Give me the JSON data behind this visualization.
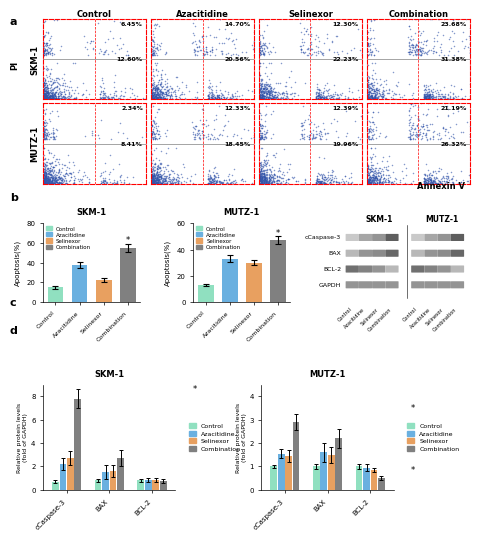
{
  "panel_a": {
    "title_cols": [
      "Control",
      "Azacitidine",
      "Selinexor",
      "Combination"
    ],
    "row_labels": [
      "SKM-1",
      "MUTZ-1"
    ],
    "upper_right_vals": [
      [
        "6.45%",
        "14.70%",
        "12.30%",
        "23.68%"
      ],
      [
        "2.34%",
        "12.33%",
        "12.39%",
        "21.19%"
      ]
    ],
    "lower_right_vals": [
      [
        "12.60%",
        "20.56%",
        "22.23%",
        "31.38%"
      ],
      [
        "8.41%",
        "18.45%",
        "19.96%",
        "26.32%"
      ]
    ]
  },
  "panel_b": {
    "skm1": {
      "title": "SKM-1",
      "ylabel": "Apoptosis(%)",
      "ylim": [
        0,
        80
      ],
      "yticks": [
        0,
        20,
        40,
        60,
        80
      ],
      "categories": [
        "Control",
        "Azacitidine",
        "Selinexor",
        "Combination"
      ],
      "values": [
        15,
        38,
        22,
        55
      ],
      "errors": [
        1.5,
        3,
        2,
        4
      ]
    },
    "mutz1": {
      "title": "MUTZ-1",
      "ylabel": "Apoptosis(%)",
      "ylim": [
        0,
        60
      ],
      "yticks": [
        0,
        20,
        40,
        60
      ],
      "categories": [
        "Control",
        "Azacitidine",
        "Selinexor",
        "Combination"
      ],
      "values": [
        13,
        33,
        30,
        47
      ],
      "errors": [
        1,
        2.5,
        2,
        3
      ]
    },
    "legend_labels": [
      "Control",
      "Azacitidine",
      "Selinexor",
      "Combination"
    ],
    "legend_colors": [
      "#90e0c0",
      "#6ab0e0",
      "#e8a060",
      "#808080"
    ]
  },
  "panel_c": {
    "skm1_label": "SKM-1",
    "mutz1_label": "MUTZ-1",
    "row_labels": [
      "cCaspase-3",
      "BAX",
      "BCL-2",
      "GAPDH"
    ],
    "x_labels": [
      "Control",
      "Azacitidine",
      "Selinexor",
      "Combination"
    ],
    "intensities": {
      "cCaspase-3": [
        0.3,
        0.5,
        0.6,
        0.9
      ],
      "BAX": [
        0.4,
        0.6,
        0.65,
        0.85
      ],
      "BCL-2": [
        0.8,
        0.7,
        0.6,
        0.4
      ],
      "GAPDH": [
        0.6,
        0.6,
        0.6,
        0.6
      ]
    }
  },
  "panel_d": {
    "skm1": {
      "title": "SKM-1",
      "ylabel": "Relative protein levels\n(fold of GAPDH)",
      "ylim": [
        0,
        9
      ],
      "yticks": [
        0,
        2,
        4,
        6,
        8
      ],
      "categories": [
        "cCaspase-3",
        "BAX",
        "BCL-2"
      ],
      "values": [
        [
          0.7,
          2.2,
          2.7,
          7.8
        ],
        [
          0.8,
          1.5,
          1.6,
          2.7
        ],
        [
          0.8,
          0.85,
          0.85,
          0.75
        ]
      ],
      "errors": [
        [
          0.1,
          0.5,
          0.6,
          0.8
        ],
        [
          0.15,
          0.6,
          0.5,
          0.7
        ],
        [
          0.1,
          0.15,
          0.2,
          0.15
        ]
      ],
      "star_positions": [
        [
          3,
          8.2
        ],
        [
          3,
          3.0
        ],
        null
      ]
    },
    "mutz1": {
      "title": "MUTZ-1",
      "ylabel": "Relative protein levels\n(fold of GAPDH)",
      "ylim": [
        0,
        4.5
      ],
      "yticks": [
        0,
        1,
        2,
        3,
        4
      ],
      "categories": [
        "cCaspase-3",
        "BAX",
        "BCL-2"
      ],
      "values": [
        [
          1.0,
          1.55,
          1.45,
          2.9
        ],
        [
          1.0,
          1.6,
          1.5,
          2.2
        ],
        [
          1.0,
          0.95,
          0.85,
          0.5
        ]
      ],
      "errors": [
        [
          0.05,
          0.2,
          0.25,
          0.35
        ],
        [
          0.1,
          0.4,
          0.35,
          0.4
        ],
        [
          0.1,
          0.15,
          0.1,
          0.1
        ]
      ],
      "star_positions": [
        [
          3,
          3.3
        ],
        null,
        [
          3,
          0.65
        ]
      ]
    },
    "legend_labels": [
      "Control",
      "Azacitidine",
      "Selinexor",
      "Combination"
    ],
    "legend_colors": [
      "#90e0c0",
      "#6ab0e0",
      "#e8a060",
      "#808080"
    ]
  },
  "bg_color": "#ffffff",
  "dot_color": "#3355aa"
}
